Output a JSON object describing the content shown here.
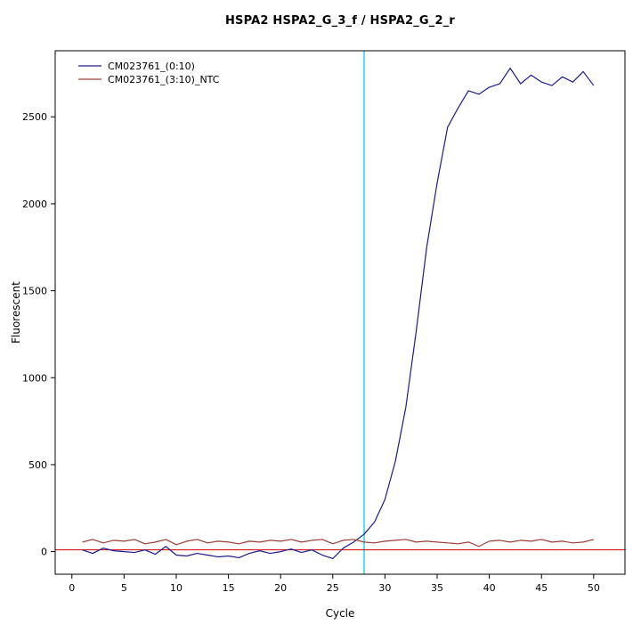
{
  "chart_data": {
    "type": "line",
    "title": "HSPA2  HSPA2_G_3_f / HSPA2_G_2_r",
    "xlabel": "Cycle",
    "ylabel": "Fluorescent",
    "xlim": [
      -1.6,
      53.0
    ],
    "ylim": [
      -130,
      2880
    ],
    "xticks": [
      0,
      5,
      10,
      15,
      20,
      25,
      30,
      35,
      40,
      45,
      50
    ],
    "yticks": [
      0,
      500,
      1000,
      1500,
      2000,
      2500
    ],
    "grid": false,
    "legend_position": "top-left",
    "x": [
      1,
      2,
      3,
      4,
      5,
      6,
      7,
      8,
      9,
      10,
      11,
      12,
      13,
      14,
      15,
      16,
      17,
      18,
      19,
      20,
      21,
      22,
      23,
      24,
      25,
      26,
      27,
      28,
      29,
      30,
      31,
      32,
      33,
      34,
      35,
      36,
      37,
      38,
      39,
      40,
      41,
      42,
      43,
      44,
      45,
      46,
      47,
      48,
      49,
      50
    ],
    "series": [
      {
        "name": "CM023761_(0:10)",
        "color": "#1c1c8e",
        "values": [
          10,
          -10,
          20,
          5,
          0,
          -5,
          10,
          -15,
          30,
          -20,
          -25,
          -10,
          -20,
          -30,
          -25,
          -35,
          -10,
          5,
          -10,
          0,
          15,
          -5,
          10,
          -20,
          -40,
          20,
          55,
          100,
          170,
          300,
          520,
          830,
          1270,
          1750,
          2120,
          2440,
          2550,
          2650,
          2630,
          2670,
          2690,
          2780,
          2690,
          2740,
          2700,
          2680,
          2730,
          2700,
          2760,
          2680
        ]
      },
      {
        "name": "CM023761_(3:10)_NTC",
        "color": "#9e3d34",
        "values": [
          55,
          70,
          50,
          65,
          60,
          70,
          45,
          55,
          70,
          40,
          60,
          70,
          50,
          60,
          55,
          45,
          60,
          55,
          65,
          60,
          70,
          55,
          65,
          70,
          45,
          65,
          70,
          55,
          50,
          60,
          65,
          70,
          55,
          60,
          55,
          50,
          45,
          55,
          30,
          60,
          65,
          55,
          65,
          60,
          70,
          55,
          60,
          50,
          55,
          70
        ]
      }
    ],
    "threshold_line": {
      "y": 10,
      "color": "#cc0000"
    },
    "vertical_line": {
      "x": 28,
      "color": "#55e0ee"
    },
    "axis_color": "#000000"
  }
}
